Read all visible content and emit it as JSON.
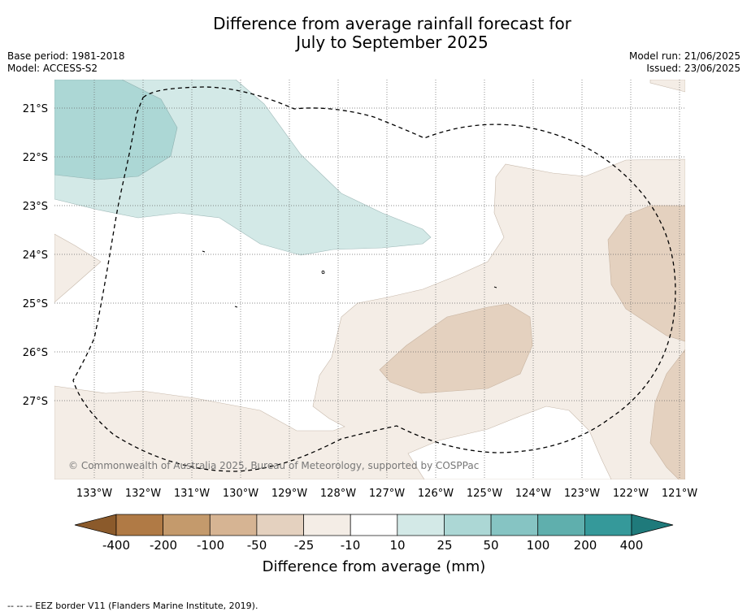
{
  "header": {
    "title_line1": "Difference from average rainfall forecast for",
    "title_line2": "July to September 2025",
    "base_period": "Base period: 1981-2018",
    "model": "Model: ACCESS-S2",
    "model_run": "Model run: 21/06/2025",
    "issued": "Issued: 23/06/2025"
  },
  "map": {
    "lat_labels": [
      "21°S",
      "22°S",
      "23°S",
      "24°S",
      "25°S",
      "26°S",
      "27°S"
    ],
    "lon_labels": [
      "133°W",
      "132°W",
      "131°W",
      "130°W",
      "129°W",
      "128°W",
      "127°W",
      "126°W",
      "125°W",
      "124°W",
      "123°W",
      "122°W",
      "121°W"
    ],
    "copyright": "© Commonwealth of Australia 2025, Bureau of Meteorology, supported by COSPPac",
    "grid": true,
    "eez_border_style": "dashed"
  },
  "colorbar": {
    "ticks": [
      "-400",
      "-200",
      "-100",
      "-50",
      "-25",
      "-10",
      "10",
      "25",
      "50",
      "100",
      "200",
      "400"
    ],
    "colors": [
      "#8b5a2b",
      "#b07a45",
      "#c49a6c",
      "#d6b493",
      "#e4d1bf",
      "#f4ede6",
      "#ffffff",
      "#d3e9e7",
      "#acd7d5",
      "#86c4c3",
      "#5fafad",
      "#35999a",
      "#1f7a7b"
    ],
    "label": "Difference from average (mm)"
  },
  "footnote": "--  --  -- EEZ border V11 (Flanders Marine Institute, 2019)."
}
